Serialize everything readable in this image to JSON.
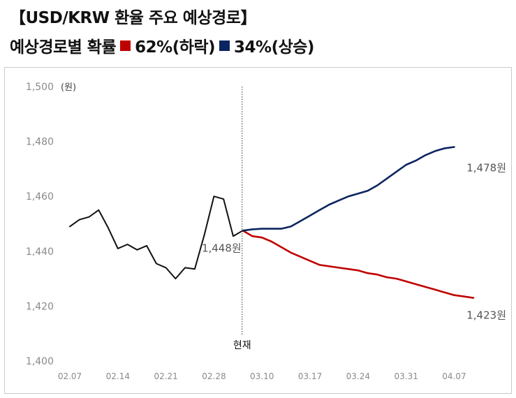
{
  "title": "【USD/KRW 환율 주요 예상경로】",
  "subtitle": {
    "prefix": "예상경로별 확률",
    "down_label": "62%(하락)",
    "up_label": "34%(상승)"
  },
  "colors": {
    "history": "#111111",
    "down": "#c00000",
    "up": "#0b2560",
    "grid": "#d9d9d9"
  },
  "chart_data": {
    "type": "line",
    "ylabel": "(원)",
    "ylim": [
      1400,
      1500
    ],
    "yticks": [
      1400,
      1420,
      1440,
      1460,
      1480,
      1500
    ],
    "y_tick_labels": [
      "1,400",
      "1,420",
      "1,440",
      "1,460",
      "1,480",
      "1,500"
    ],
    "x_tick_labels": [
      "02.07",
      "02.14",
      "02.21",
      "02.28",
      "03.10",
      "03.17",
      "03.24",
      "03.31",
      "04.07"
    ],
    "x_tick_index": [
      0,
      5,
      10,
      15,
      20,
      25,
      30,
      35,
      40
    ],
    "now_index": 18,
    "now_label": "현재",
    "series": [
      {
        "key": "history",
        "start_index": 0,
        "values": [
          1449,
          1451.5,
          1452.5,
          1455,
          1448.5,
          1441,
          1442.5,
          1440.5,
          1442,
          1435.5,
          1434,
          1430,
          1434,
          1433.5,
          1446,
          1460,
          1459,
          1445.5,
          1447.5
        ]
      },
      {
        "name": "34%(상승)",
        "key": "up",
        "start_index": 18,
        "values": [
          1447.5,
          1448,
          1448.2,
          1448.2,
          1448.2,
          1449,
          1451,
          1453,
          1455,
          1457,
          1458.5,
          1460,
          1461,
          1462,
          1464,
          1466.5,
          1469,
          1471.5,
          1473,
          1475,
          1476.5,
          1477.5,
          1478
        ]
      },
      {
        "name": "62%(하락)",
        "key": "down",
        "start_index": 18,
        "values": [
          1447.5,
          1445.5,
          1445,
          1443.5,
          1441.5,
          1439.5,
          1438,
          1436.5,
          1435,
          1434.5,
          1434,
          1433.5,
          1433,
          1432,
          1431.5,
          1430.5,
          1430,
          1429,
          1428,
          1427,
          1426,
          1425,
          1424,
          1423.5,
          1423
        ]
      }
    ],
    "annotations": [
      {
        "text": "1,448원",
        "series": "history",
        "index": 18
      },
      {
        "text": "1,478원",
        "series": "up",
        "index": 40
      },
      {
        "text": "1,423원",
        "series": "down",
        "index": 42
      }
    ]
  }
}
